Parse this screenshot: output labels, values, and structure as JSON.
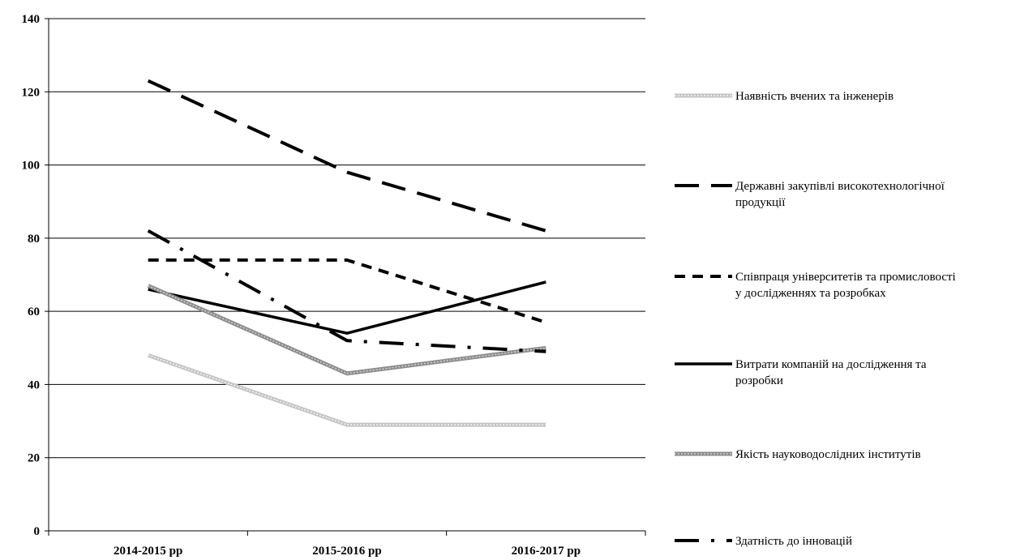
{
  "chart_data": {
    "type": "line",
    "categories": [
      "2014-2015 рр",
      "2015-2016 рр",
      "2016-2017 рр"
    ],
    "ylim": [
      0,
      140
    ],
    "yticks": [
      0,
      20,
      40,
      60,
      80,
      100,
      120,
      140
    ],
    "grid": true,
    "legend_position": "right",
    "series": [
      {
        "name": "Наявність вчених та інженерів",
        "legend_lines": [
          "Наявність вчених та інженерів"
        ],
        "values": [
          48,
          29,
          29
        ],
        "color": "#bdbdbd",
        "style": "dotted-light"
      },
      {
        "name": "Державні закупівлі високотехнологічної продукції",
        "legend_lines": [
          "Державні закупівлі високотехнологічної",
          "продукції"
        ],
        "values": [
          123,
          98,
          82
        ],
        "color": "#000000",
        "style": "long-dash"
      },
      {
        "name": "Співпраця університетів та промисловості у дослідженнях та розробках",
        "legend_lines": [
          "Співпраця університетів та промисловості",
          "у дослідженнях та розробках"
        ],
        "values": [
          74,
          74,
          57
        ],
        "color": "#000000",
        "style": "dash"
      },
      {
        "name": "Витрати компаній на дослідження та розробки",
        "legend_lines": [
          "Витрати компаній на дослідження та",
          "розробки"
        ],
        "values": [
          66,
          54,
          68
        ],
        "color": "#000000",
        "style": "solid"
      },
      {
        "name": "Якість науководослідних інститутів",
        "legend_lines": [
          "Якість науководослідних інститутів"
        ],
        "values": [
          67,
          43,
          50
        ],
        "color": "#8a8a8a",
        "style": "gray-thick"
      },
      {
        "name": "Здатність до інновацій",
        "legend_lines": [
          "Здатність до інновацій"
        ],
        "values": [
          82,
          52,
          49
        ],
        "color": "#000000",
        "style": "dash-dot"
      }
    ]
  }
}
